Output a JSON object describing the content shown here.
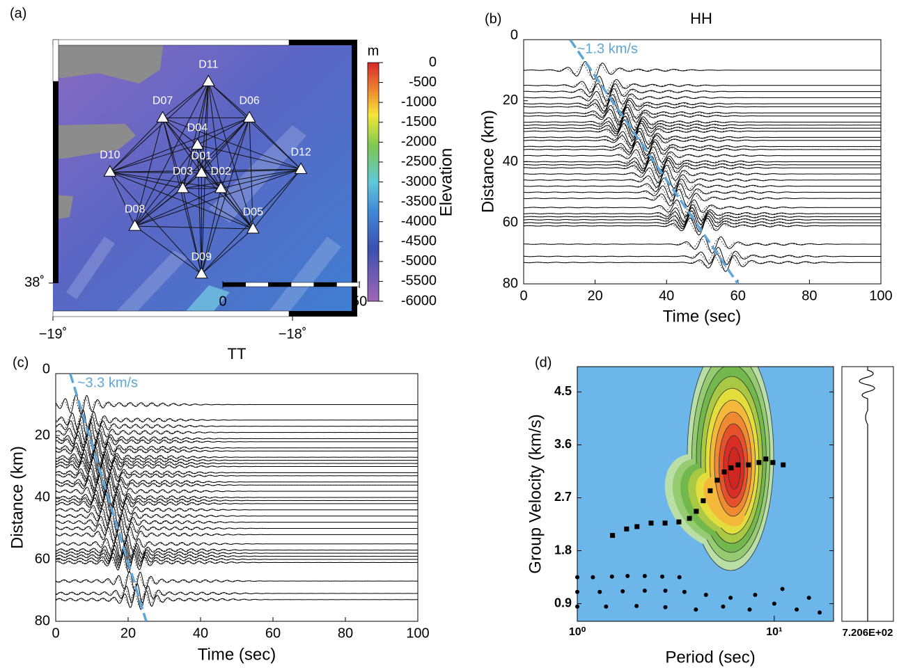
{
  "chart_data": [
    {
      "type": "map",
      "label": "(a)",
      "xlim": [
        -19,
        -17.73
      ],
      "ylim": [
        37.89,
        38.8
      ],
      "xticks": [
        {
          "value": -19,
          "label": "−19˚"
        },
        {
          "value": -18,
          "label": "−18˚"
        }
      ],
      "yticks": [
        {
          "value": 38,
          "label": "38˚"
        }
      ],
      "stations": [
        {
          "name": "D11",
          "lon": -18.351,
          "lat": 38.662
        },
        {
          "name": "D07",
          "lon": -18.542,
          "lat": 38.543
        },
        {
          "name": "D06",
          "lon": -18.18,
          "lat": 38.543
        },
        {
          "name": "D04",
          "lon": -18.397,
          "lat": 38.454
        },
        {
          "name": "D01",
          "lon": -18.38,
          "lat": 38.362
        },
        {
          "name": "D03",
          "lon": -18.458,
          "lat": 38.311
        },
        {
          "name": "D02",
          "lon": -18.299,
          "lat": 38.311
        },
        {
          "name": "D10",
          "lon": -18.762,
          "lat": 38.365
        },
        {
          "name": "D12",
          "lon": -17.965,
          "lat": 38.374
        },
        {
          "name": "D08",
          "lon": -18.658,
          "lat": 38.187
        },
        {
          "name": "D05",
          "lon": -18.165,
          "lat": 38.178
        },
        {
          "name": "D09",
          "lon": -18.38,
          "lat": 38.03
        }
      ],
      "colorbar": {
        "unit": "m",
        "label": "Elevation",
        "lim": [
          -6000,
          0
        ],
        "ticks": [
          0,
          -500,
          -1000,
          -1500,
          -2000,
          -2500,
          -3000,
          -3500,
          -4000,
          -4500,
          -5000,
          -5500,
          -6000
        ]
      },
      "scale_bar": {
        "ticks": [
          0,
          50
        ]
      }
    },
    {
      "type": "record-section",
      "label": "(b)",
      "title": "HH",
      "xlabel": "Time (sec)",
      "ylabel": "Distance (km)",
      "xlim": [
        0,
        100
      ],
      "ylim": [
        0,
        80
      ],
      "xticks": [
        0,
        20,
        40,
        60,
        80,
        100
      ],
      "yticks": [
        0,
        20,
        40,
        60,
        80
      ],
      "annotation": "~1.3 km/s",
      "velocity_line": {
        "x": [
          13,
          60
        ],
        "y": [
          0,
          80
        ],
        "color": "#5ea5d8"
      },
      "values": [
        10,
        15,
        17,
        19,
        21,
        22,
        24,
        25,
        27,
        28,
        29,
        30,
        32,
        33,
        35,
        36,
        38,
        40,
        41,
        42,
        44,
        46,
        48,
        50,
        52,
        55,
        57,
        58,
        59,
        60,
        61,
        67,
        71,
        73
      ]
    },
    {
      "type": "record-section",
      "label": "(c)",
      "title": "TT",
      "xlabel": "Time (sec)",
      "ylabel": "Distance (km)",
      "xlim": [
        0,
        100
      ],
      "ylim": [
        0,
        80
      ],
      "xticks": [
        0,
        20,
        40,
        60,
        80,
        100
      ],
      "yticks": [
        0,
        20,
        40,
        60,
        80
      ],
      "annotation": "~3.3 km/s",
      "velocity_line": {
        "x": [
          4,
          25
        ],
        "y": [
          0,
          80
        ],
        "color": "#5ea5d8"
      },
      "values": [
        10,
        15,
        17,
        19,
        21,
        22,
        24,
        25,
        27,
        28,
        29,
        30,
        32,
        33,
        35,
        36,
        38,
        40,
        41,
        42,
        44,
        46,
        48,
        50,
        52,
        55,
        57,
        58,
        59,
        60,
        61,
        67,
        71,
        73
      ]
    },
    {
      "type": "ftan",
      "label": "(d)",
      "xlabel": "Period (sec)",
      "ylabel": "Group Velocity (km/s)",
      "log_x": true,
      "xlim": [
        1,
        20
      ],
      "ylim": [
        0.6,
        4.93
      ],
      "xticks": [
        {
          "value": 1,
          "label": "10⁰"
        },
        {
          "value": 10,
          "label": "10¹"
        }
      ],
      "yticks": [
        0.9,
        1.8,
        2.7,
        3.6,
        4.5
      ],
      "amplitude_label": "7.206E+02",
      "series": [
        {
          "marker": "square",
          "color": "#000000",
          "x": [
            1.51,
            1.78,
            2.01,
            2.37,
            2.79,
            3.28,
            3.71,
            4.02,
            4.36,
            4.73,
            5.13,
            5.57,
            6.04,
            6.55,
            7.4,
            8.36,
            9.07,
            9.84,
            11.1
          ],
          "values": [
            2.06,
            2.17,
            2.21,
            2.27,
            2.27,
            2.29,
            2.35,
            2.47,
            2.65,
            2.82,
            3.0,
            3.14,
            3.21,
            3.26,
            3.26,
            3.3,
            3.36,
            3.3,
            3.26
          ]
        },
        {
          "marker": "circle",
          "color": "#000000",
          "x": [
            1,
            1.2,
            1.5,
            1.8,
            2.2,
            2.7,
            3.3,
            1,
            1.3,
            1.7,
            2.2,
            2.8,
            3.5,
            4.5,
            6,
            8,
            11,
            15,
            1,
            1.4,
            2,
            2.8,
            4,
            5.5,
            7.5,
            10,
            13,
            17
          ],
          "values": [
            1.35,
            1.35,
            1.36,
            1.37,
            1.37,
            1.36,
            1.35,
            1.1,
            1.1,
            1.11,
            1.12,
            1.12,
            1.1,
            1.05,
            1.0,
            1.05,
            1.15,
            1.0,
            0.85,
            0.85,
            0.86,
            0.84,
            0.8,
            0.85,
            0.8,
            0.9,
            0.8,
            0.75
          ]
        }
      ]
    }
  ]
}
